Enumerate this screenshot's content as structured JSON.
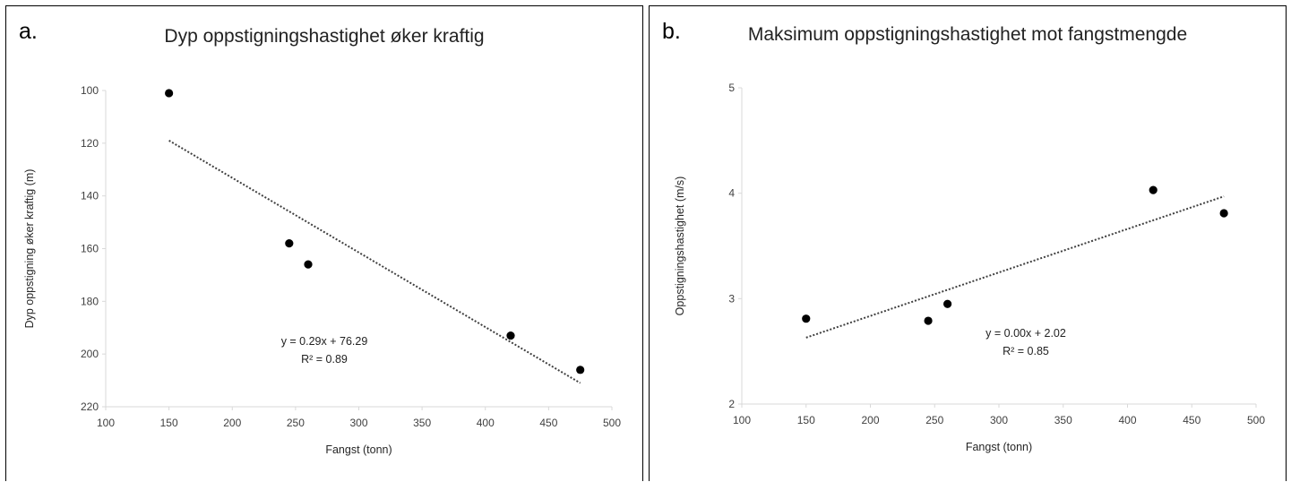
{
  "chart_data": [
    {
      "type": "scatter",
      "panel_label": "a.",
      "title": "Dyp oppstigningshastighet øker kraftig",
      "xlabel": "Fangst (tonn)",
      "ylabel": "Dyp oppstigning øker kraftig (m)",
      "xlim": [
        100,
        500
      ],
      "ylim": [
        100,
        220
      ],
      "y_reversed": true,
      "xticks": [
        100,
        150,
        200,
        250,
        300,
        350,
        400,
        450,
        500
      ],
      "yticks": [
        100,
        120,
        140,
        160,
        180,
        200,
        220
      ],
      "grid": false,
      "points": [
        {
          "x": 150,
          "y": 101
        },
        {
          "x": 245,
          "y": 158
        },
        {
          "x": 260,
          "y": 166
        },
        {
          "x": 420,
          "y": 193
        },
        {
          "x": 475,
          "y": 206
        }
      ],
      "trendline": {
        "x": [
          150,
          475
        ],
        "y": [
          119,
          211
        ],
        "style": "dotted"
      },
      "equation": "y = 0.29x + 76.29",
      "r_squared": "R² = 0.89",
      "colors": {
        "points": "#000000",
        "trendline": "#404040"
      }
    },
    {
      "type": "scatter",
      "panel_label": "b.",
      "title": "Maksimum oppstigningshastighet mot fangstmengde",
      "xlabel": "Fangst (tonn)",
      "ylabel": "Oppstigningshastighet (m/s)",
      "xlim": [
        100,
        500
      ],
      "ylim": [
        2,
        5
      ],
      "xticks": [
        100,
        150,
        200,
        250,
        300,
        350,
        400,
        450,
        500
      ],
      "yticks": [
        2,
        3,
        4,
        5
      ],
      "grid": false,
      "points": [
        {
          "x": 150,
          "y": 2.81
        },
        {
          "x": 245,
          "y": 2.79
        },
        {
          "x": 260,
          "y": 2.95
        },
        {
          "x": 420,
          "y": 4.03
        },
        {
          "x": 475,
          "y": 3.81
        }
      ],
      "trendline": {
        "x": [
          150,
          475
        ],
        "y": [
          2.63,
          3.97
        ],
        "style": "dotted"
      },
      "equation": "y = 0.00x + 2.02",
      "r_squared": "R² = 0.85",
      "colors": {
        "points": "#000000",
        "trendline": "#404040"
      }
    }
  ]
}
